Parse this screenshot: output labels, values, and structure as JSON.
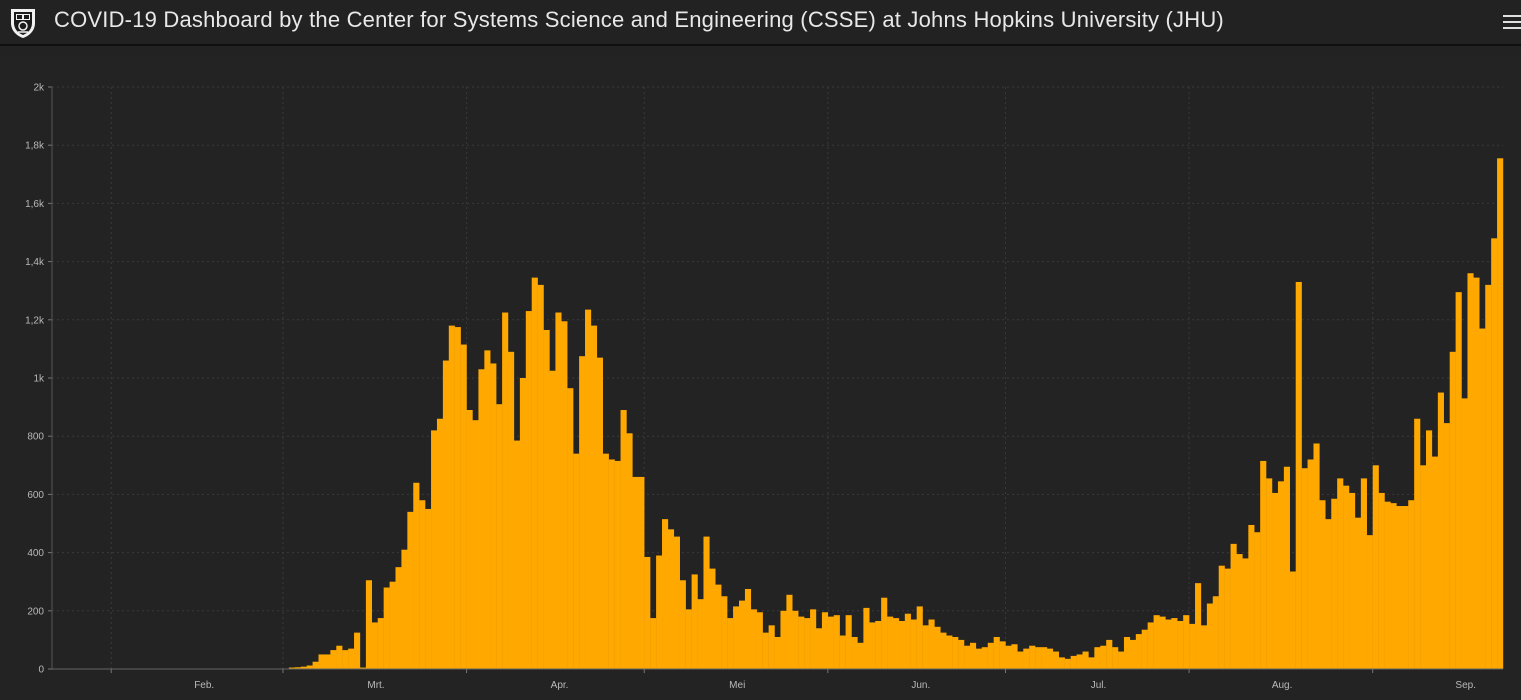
{
  "header": {
    "title": "COVID-19 Dashboard by the Center for Systems Science and Engineering (CSSE) at Johns Hopkins University (JHU)",
    "logo_icon": "jhu-shield-icon",
    "menu_icon": "hamburger-menu-icon"
  },
  "colors": {
    "background": "#222222",
    "bar": "#FFA800",
    "grid": "#3a3a3a",
    "text": "#b9b9b9"
  },
  "chart_data": {
    "type": "bar",
    "title": "",
    "xlabel": "",
    "ylabel": "",
    "ylim": [
      0,
      2000
    ],
    "y_ticks": [
      {
        "value": 0,
        "label": "0"
      },
      {
        "value": 200,
        "label": "200"
      },
      {
        "value": 400,
        "label": "400"
      },
      {
        "value": 600,
        "label": "600"
      },
      {
        "value": 800,
        "label": "800"
      },
      {
        "value": 1000,
        "label": "1k"
      },
      {
        "value": 1200,
        "label": "1,2k"
      },
      {
        "value": 1400,
        "label": "1,4k"
      },
      {
        "value": 1600,
        "label": "1,6k"
      },
      {
        "value": 1800,
        "label": "1,8k"
      },
      {
        "value": 2000,
        "label": "2k"
      }
    ],
    "x_start": "2020-01-22",
    "x_ticks": [
      {
        "label": "Feb.",
        "date": "2020-02-01"
      },
      {
        "label": "Mrt.",
        "date": "2020-03-01"
      },
      {
        "label": "Apr.",
        "date": "2020-04-01"
      },
      {
        "label": "Mei",
        "date": "2020-05-01"
      },
      {
        "label": "Jun.",
        "date": "2020-06-01"
      },
      {
        "label": "Jul.",
        "date": "2020-07-01"
      },
      {
        "label": "Aug.",
        "date": "2020-08-01"
      },
      {
        "label": "Sep.",
        "date": "2020-09-01"
      }
    ],
    "grid": true,
    "values": [
      0,
      0,
      0,
      0,
      0,
      0,
      0,
      0,
      0,
      0,
      0,
      0,
      0,
      0,
      0,
      0,
      0,
      0,
      0,
      0,
      0,
      0,
      0,
      0,
      0,
      0,
      0,
      0,
      0,
      0,
      0,
      0,
      0,
      0,
      0,
      0,
      0,
      0,
      0,
      0,
      5,
      6,
      8,
      12,
      25,
      50,
      50,
      65,
      80,
      65,
      70,
      125,
      5,
      305,
      160,
      175,
      280,
      300,
      350,
      410,
      540,
      640,
      580,
      550,
      820,
      860,
      1060,
      1180,
      1175,
      1115,
      890,
      855,
      1030,
      1095,
      1050,
      910,
      1225,
      1090,
      785,
      1000,
      1230,
      1345,
      1320,
      1165,
      1025,
      1225,
      1195,
      965,
      740,
      1075,
      1235,
      1180,
      1070,
      740,
      720,
      715,
      890,
      810,
      660,
      660,
      385,
      175,
      390,
      515,
      480,
      455,
      305,
      205,
      325,
      240,
      455,
      345,
      290,
      250,
      175,
      215,
      235,
      275,
      205,
      195,
      125,
      150,
      110,
      200,
      255,
      200,
      180,
      175,
      205,
      140,
      195,
      180,
      185,
      115,
      185,
      110,
      90,
      210,
      160,
      165,
      245,
      180,
      175,
      165,
      190,
      170,
      215,
      150,
      170,
      145,
      125,
      115,
      110,
      100,
      80,
      90,
      70,
      75,
      90,
      110,
      95,
      80,
      85,
      60,
      70,
      80,
      75,
      75,
      70,
      60,
      40,
      35,
      45,
      50,
      60,
      40,
      75,
      80,
      100,
      75,
      60,
      110,
      100,
      120,
      135,
      160,
      185,
      180,
      170,
      175,
      165,
      185,
      155,
      295,
      150,
      225,
      250,
      355,
      345,
      430,
      395,
      380,
      495,
      470,
      715,
      655,
      605,
      645,
      695,
      335,
      1330,
      690,
      720,
      775,
      580,
      515,
      585,
      655,
      630,
      605,
      520,
      655,
      460,
      700,
      605,
      575,
      570,
      560,
      560,
      580,
      860,
      700,
      820,
      730,
      950,
      845,
      1090,
      1295,
      930,
      1360,
      1345,
      1170,
      1320,
      1480,
      1755
    ]
  }
}
